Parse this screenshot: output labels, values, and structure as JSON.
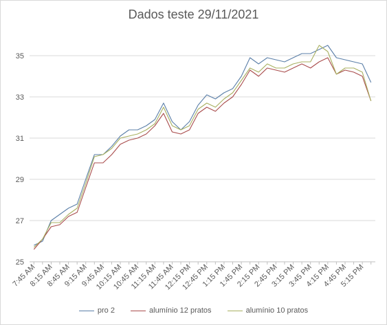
{
  "chart_data": {
    "type": "line",
    "title": "Dados teste 29/11/2021",
    "xlabel": "",
    "ylabel": "",
    "ylim": [
      25,
      36
    ],
    "yticks": [
      25,
      27,
      29,
      31,
      33,
      35
    ],
    "grid": "horizontal",
    "legend_position": "bottom",
    "x_tick_labels": [
      "7:45 AM",
      "8:15 AM",
      "8:45 AM",
      "9:15 AM",
      "9:45 AM",
      "10:15 AM",
      "10:45 AM",
      "11:15 AM",
      "11:45 AM",
      "12:15 PM",
      "12:45 PM",
      "1:15 PM",
      "1:45 PM",
      "2:15 PM",
      "2:45 PM",
      "3:15 PM",
      "3:45 PM",
      "4:15 PM",
      "4:45 PM",
      "5:15 PM"
    ],
    "x": [
      "7:45 AM",
      "8:00 AM",
      "8:15 AM",
      "8:30 AM",
      "8:45 AM",
      "9:00 AM",
      "9:15 AM",
      "9:30 AM",
      "9:45 AM",
      "10:00 AM",
      "10:15 AM",
      "10:30 AM",
      "10:45 AM",
      "11:00 AM",
      "11:15 AM",
      "11:30 AM",
      "11:45 AM",
      "12:00 PM",
      "12:15 PM",
      "12:30 PM",
      "12:45 PM",
      "1:00 PM",
      "1:15 PM",
      "1:30 PM",
      "1:45 PM",
      "2:00 PM",
      "2:15 PM",
      "2:30 PM",
      "2:45 PM",
      "3:00 PM",
      "3:15 PM",
      "3:30 PM",
      "3:45 PM",
      "4:00 PM",
      "4:15 PM",
      "4:30 PM",
      "4:45 PM",
      "5:00 PM",
      "5:15 PM",
      "5:30 PM"
    ],
    "series": [
      {
        "name": "pro 2",
        "color": "#5b7fa8",
        "values": [
          25.8,
          26.0,
          27.0,
          27.3,
          27.6,
          27.8,
          29.0,
          30.2,
          30.2,
          30.6,
          31.1,
          31.4,
          31.4,
          31.6,
          31.9,
          32.7,
          31.8,
          31.4,
          31.8,
          32.6,
          33.1,
          32.9,
          33.2,
          33.4,
          34.0,
          34.9,
          34.6,
          34.9,
          34.8,
          34.7,
          34.9,
          35.1,
          35.1,
          35.3,
          35.5,
          34.9,
          34.8,
          34.7,
          34.6,
          33.7
        ]
      },
      {
        "name": "alumínio 12 pratos",
        "color": "#a94c4c",
        "values": [
          25.6,
          26.1,
          26.7,
          26.8,
          27.2,
          27.4,
          28.6,
          29.8,
          29.8,
          30.2,
          30.7,
          30.9,
          31.0,
          31.2,
          31.6,
          32.2,
          31.3,
          31.2,
          31.4,
          32.2,
          32.5,
          32.3,
          32.7,
          33.0,
          33.6,
          34.3,
          34.0,
          34.4,
          34.3,
          34.2,
          34.4,
          34.6,
          34.4,
          34.7,
          34.9,
          34.1,
          34.3,
          34.2,
          34.0,
          32.8
        ]
      },
      {
        "name": "alumínio 10 pratos",
        "color": "#a8b060",
        "values": [
          25.7,
          26.1,
          26.9,
          26.9,
          27.3,
          27.6,
          28.8,
          30.1,
          30.2,
          30.5,
          31.0,
          31.1,
          31.2,
          31.4,
          31.7,
          32.5,
          31.6,
          31.4,
          31.6,
          32.4,
          32.7,
          32.5,
          32.9,
          33.2,
          33.8,
          34.4,
          34.2,
          34.6,
          34.4,
          34.4,
          34.6,
          34.7,
          34.7,
          35.5,
          35.2,
          34.1,
          34.4,
          34.4,
          34.2,
          32.8
        ]
      }
    ]
  }
}
